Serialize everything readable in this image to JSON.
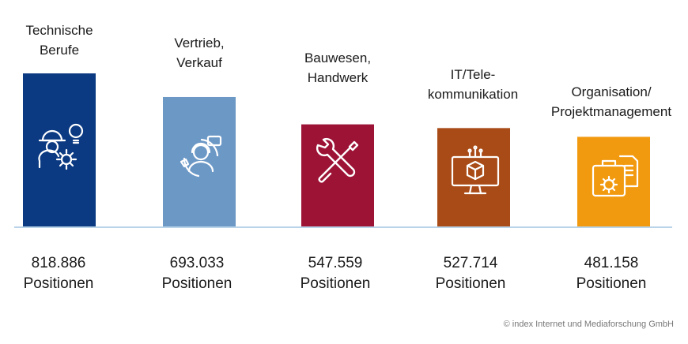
{
  "chart_data": {
    "type": "bar",
    "categories": [
      "Technische\nBerufe",
      "Vertrieb,\nVerkauf",
      "Bauwesen,\nHandwerk",
      "IT/Tele-\nkommunikation",
      "Organisation/\nProjektmanagement"
    ],
    "values": [
      818886,
      693033,
      547559,
      527714,
      481158
    ],
    "value_labels": [
      "818.886",
      "693.033",
      "547.559",
      "527.714",
      "481.158"
    ],
    "unit_label": "Positionen",
    "colors": [
      "#0b3a82",
      "#6c98c6",
      "#9c1336",
      "#a94b17",
      "#f29a0f"
    ],
    "icons": [
      "worker-gear-lightbulb-icon",
      "customer-service-icon",
      "wrench-screwdriver-icon",
      "computer-cube-icon",
      "briefcase-gear-icon"
    ],
    "ylim": [
      0,
      818886
    ],
    "grid": false
  },
  "footer": {
    "copyright": "© index Internet und Mediaforschung GmbH"
  }
}
